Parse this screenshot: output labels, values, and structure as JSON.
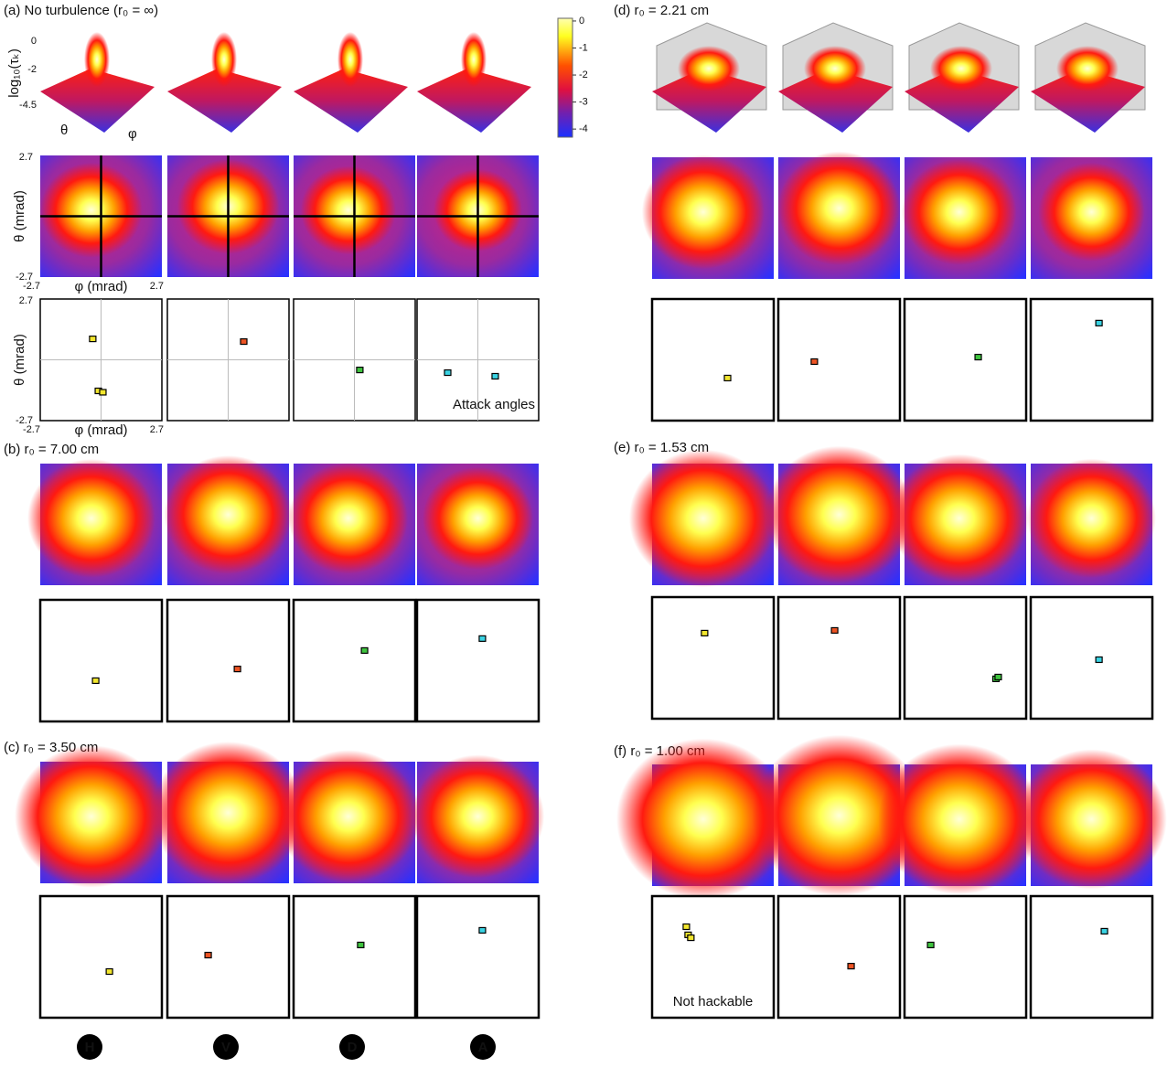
{
  "figure": {
    "lim": [
      -2.7,
      2.7
    ],
    "colorbar": {
      "lim": [
        -4.3,
        0.1
      ],
      "ticks": [
        0,
        -1,
        -2,
        -3,
        -4
      ]
    },
    "surface_axis": {
      "label": "log₁₀(τₖ)",
      "lim": [
        -4.5,
        0
      ],
      "ticks": [
        0,
        -2,
        -4.5
      ],
      "x_label": "θ",
      "y_label": "φ"
    },
    "map_axes": {
      "y_label": "θ (mrad)",
      "x_label": "φ (mrad)",
      "ticks": [
        2.7,
        -2.7
      ]
    },
    "states": [
      {
        "letter": "H",
        "color": "#f2e62e"
      },
      {
        "letter": "V",
        "color": "#ee5424"
      },
      {
        "letter": "D",
        "color": "#3fc43f"
      },
      {
        "letter": "A",
        "color": "#3ad3e3"
      }
    ],
    "panels": [
      {
        "label": "(a) No turbulence (r₀ = ∞)",
        "annotation": "Attack angles",
        "markers": [
          [
            [
              -0.37,
              0.93
            ],
            [
              -0.12,
              -1.38
            ],
            [
              0.08,
              -1.44
            ]
          ],
          [
            [
              0.69,
              0.81
            ]
          ],
          [
            [
              0.24,
              -0.45
            ]
          ],
          [
            [
              -1.34,
              -0.57
            ],
            [
              0.77,
              -0.73
            ]
          ]
        ]
      },
      {
        "label": "(b) r₀ = 7.00 cm",
        "markers": [
          [
            [
              -0.24,
              -0.89
            ]
          ],
          [
            [
              0.41,
              -0.37
            ]
          ],
          [
            [
              0.45,
              0.45
            ]
          ],
          [
            [
              0.2,
              0.98
            ]
          ]
        ]
      },
      {
        "label": "(c) r₀ = 3.50 cm",
        "markers": [
          [
            [
              0.37,
              -0.65
            ]
          ],
          [
            [
              -0.89,
              0.08
            ]
          ],
          [
            [
              0.28,
              0.53
            ]
          ],
          [
            [
              0.2,
              1.18
            ]
          ]
        ]
      },
      {
        "label": "(d) r₀ = 2.21 cm",
        "markers": [
          [
            [
              0.65,
              -0.81
            ]
          ],
          [
            [
              -1.1,
              -0.08
            ]
          ],
          [
            [
              0.57,
              0.12
            ]
          ],
          [
            [
              0.33,
              1.63
            ]
          ]
        ]
      },
      {
        "label": "(e) r₀ = 1.53 cm",
        "markers": [
          [
            [
              -0.37,
              1.1
            ]
          ],
          [
            [
              -0.2,
              1.22
            ]
          ],
          [
            [
              1.36,
              -0.93
            ],
            [
              1.46,
              -0.85
            ]
          ],
          [
            [
              0.33,
              -0.08
            ]
          ]
        ]
      },
      {
        "label": "(f) r₀ = 1.00 cm",
        "annotation": "Not hackable",
        "markers": [
          [
            [
              -1.18,
              1.34
            ],
            [
              -1.1,
              0.98
            ],
            [
              -0.98,
              0.85
            ]
          ],
          [
            [
              0.53,
              -0.41
            ]
          ],
          [
            [
              -1.54,
              0.53
            ]
          ],
          [
            [
              0.57,
              1.14
            ]
          ]
        ]
      }
    ]
  }
}
